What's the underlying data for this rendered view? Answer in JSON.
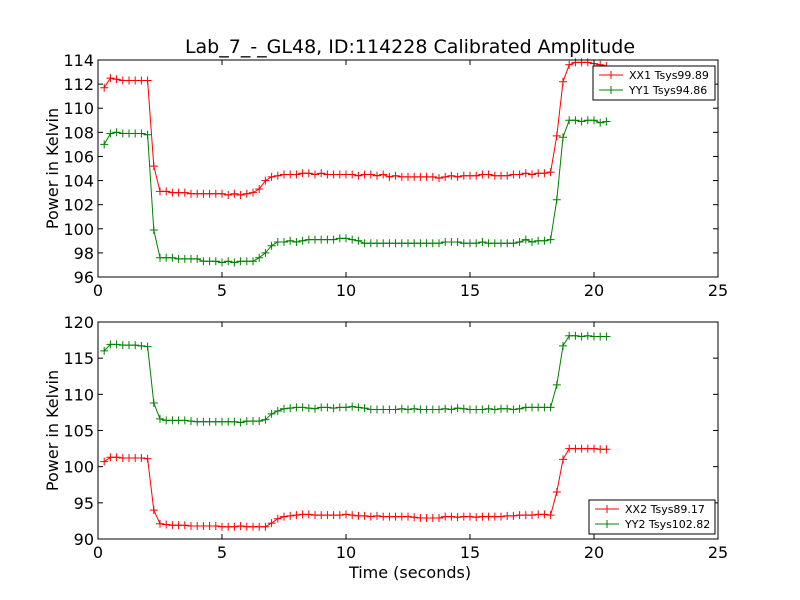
{
  "figure": {
    "title": "Lab_7_-_GL48, ID:114228 Calibrated Amplitude",
    "xlabel": "Time (seconds)"
  },
  "colors": {
    "xx": "#ff0000",
    "yy": "#008000"
  },
  "chart_data": [
    {
      "type": "line",
      "title": "Lab_7_-_GL48, ID:114228 Calibrated Amplitude",
      "xlabel": "",
      "ylabel": "Power in Kelvin",
      "xlim": [
        0,
        25
      ],
      "ylim": [
        96,
        114
      ],
      "xticks": [
        0,
        5,
        10,
        15,
        20,
        25
      ],
      "yticks": [
        96,
        98,
        100,
        102,
        104,
        106,
        108,
        110,
        112,
        114
      ],
      "grid": false,
      "legend_position": "top-right",
      "x": [
        0.25,
        0.5,
        0.75,
        1.0,
        1.25,
        1.5,
        1.75,
        2.0,
        2.25,
        2.5,
        2.75,
        3.0,
        3.25,
        3.5,
        3.75,
        4.0,
        4.25,
        4.5,
        4.75,
        5.0,
        5.25,
        5.5,
        5.75,
        6.0,
        6.25,
        6.5,
        6.75,
        7.0,
        7.25,
        7.5,
        7.75,
        8.0,
        8.25,
        8.5,
        8.75,
        9.0,
        9.25,
        9.5,
        9.75,
        10.0,
        10.25,
        10.5,
        10.75,
        11.0,
        11.25,
        11.5,
        11.75,
        12.0,
        12.25,
        12.5,
        12.75,
        13.0,
        13.25,
        13.5,
        13.75,
        14.0,
        14.25,
        14.5,
        14.75,
        15.0,
        15.25,
        15.5,
        15.75,
        16.0,
        16.25,
        16.5,
        16.75,
        17.0,
        17.25,
        17.5,
        17.75,
        18.0,
        18.25,
        18.5,
        18.75,
        19.0,
        19.25,
        19.5,
        19.75,
        20.0,
        20.25,
        20.5
      ],
      "series": [
        {
          "name": "XX1 Tsys99.89",
          "color": "#ff0000",
          "values": [
            111.7,
            112.5,
            112.4,
            112.3,
            112.3,
            112.3,
            112.3,
            112.3,
            105.2,
            103.1,
            103.1,
            103.0,
            103.0,
            103.0,
            102.9,
            102.9,
            102.9,
            102.9,
            102.9,
            102.9,
            102.8,
            102.9,
            102.8,
            102.9,
            103.0,
            103.3,
            104.0,
            104.3,
            104.4,
            104.5,
            104.5,
            104.5,
            104.6,
            104.6,
            104.5,
            104.6,
            104.5,
            104.5,
            104.5,
            104.5,
            104.5,
            104.4,
            104.5,
            104.5,
            104.4,
            104.5,
            104.3,
            104.4,
            104.3,
            104.3,
            104.3,
            104.3,
            104.3,
            104.3,
            104.2,
            104.3,
            104.4,
            104.3,
            104.4,
            104.4,
            104.4,
            104.5,
            104.5,
            104.4,
            104.4,
            104.4,
            104.5,
            104.5,
            104.6,
            104.5,
            104.6,
            104.6,
            104.7,
            107.7,
            112.2,
            113.6,
            113.8,
            113.8,
            113.8,
            113.7,
            113.6,
            113.5
          ]
        },
        {
          "name": "YY1 Tsys94.86",
          "color": "#008000",
          "values": [
            107.0,
            107.9,
            108.0,
            107.9,
            107.9,
            107.9,
            107.9,
            107.8,
            99.9,
            97.6,
            97.6,
            97.6,
            97.5,
            97.5,
            97.5,
            97.5,
            97.3,
            97.3,
            97.3,
            97.2,
            97.3,
            97.2,
            97.3,
            97.3,
            97.3,
            97.6,
            98.0,
            98.6,
            98.9,
            98.9,
            99.0,
            98.9,
            99.0,
            99.1,
            99.1,
            99.1,
            99.1,
            99.1,
            99.2,
            99.2,
            99.1,
            99.0,
            98.8,
            98.8,
            98.8,
            98.8,
            98.8,
            98.8,
            98.8,
            98.8,
            98.8,
            98.8,
            98.8,
            98.8,
            98.8,
            98.9,
            98.9,
            98.9,
            98.8,
            98.8,
            98.8,
            98.9,
            98.8,
            98.8,
            98.8,
            98.8,
            98.8,
            98.9,
            99.1,
            98.9,
            99.0,
            99.0,
            99.1,
            102.4,
            107.6,
            109.0,
            109.0,
            108.9,
            109.0,
            109.0,
            108.8,
            108.9
          ]
        }
      ]
    },
    {
      "type": "line",
      "title": "",
      "xlabel": "Time (seconds)",
      "ylabel": "Power in Kelvin",
      "xlim": [
        0,
        25
      ],
      "ylim": [
        90,
        120
      ],
      "xticks": [
        0,
        5,
        10,
        15,
        20,
        25
      ],
      "yticks": [
        90,
        95,
        100,
        105,
        110,
        115,
        120
      ],
      "grid": false,
      "legend_position": "bottom-right",
      "x": [
        0.25,
        0.5,
        0.75,
        1.0,
        1.25,
        1.5,
        1.75,
        2.0,
        2.25,
        2.5,
        2.75,
        3.0,
        3.25,
        3.5,
        3.75,
        4.0,
        4.25,
        4.5,
        4.75,
        5.0,
        5.25,
        5.5,
        5.75,
        6.0,
        6.25,
        6.5,
        6.75,
        7.0,
        7.25,
        7.5,
        7.75,
        8.0,
        8.25,
        8.5,
        8.75,
        9.0,
        9.25,
        9.5,
        9.75,
        10.0,
        10.25,
        10.5,
        10.75,
        11.0,
        11.25,
        11.5,
        11.75,
        12.0,
        12.25,
        12.5,
        12.75,
        13.0,
        13.25,
        13.5,
        13.75,
        14.0,
        14.25,
        14.5,
        14.75,
        15.0,
        15.25,
        15.5,
        15.75,
        16.0,
        16.25,
        16.5,
        16.75,
        17.0,
        17.25,
        17.5,
        17.75,
        18.0,
        18.25,
        18.5,
        18.75,
        19.0,
        19.25,
        19.5,
        19.75,
        20.0,
        20.25,
        20.5
      ],
      "series": [
        {
          "name": "XX2 Tsys89.17",
          "color": "#ff0000",
          "values": [
            100.7,
            101.3,
            101.3,
            101.2,
            101.2,
            101.2,
            101.2,
            101.1,
            94.0,
            92.1,
            92.0,
            91.9,
            91.9,
            91.9,
            91.8,
            91.8,
            91.8,
            91.8,
            91.8,
            91.7,
            91.7,
            91.7,
            91.8,
            91.7,
            91.7,
            91.7,
            91.7,
            92.2,
            92.8,
            93.1,
            93.2,
            93.3,
            93.4,
            93.4,
            93.3,
            93.3,
            93.3,
            93.3,
            93.3,
            93.4,
            93.3,
            93.2,
            93.2,
            93.1,
            93.2,
            93.1,
            93.1,
            93.1,
            93.1,
            93.1,
            93.0,
            92.9,
            92.9,
            92.9,
            92.9,
            93.1,
            93.1,
            93.0,
            93.1,
            93.1,
            93.0,
            93.1,
            93.1,
            93.1,
            93.1,
            93.2,
            93.2,
            93.3,
            93.3,
            93.3,
            93.4,
            93.4,
            93.3,
            96.5,
            101.0,
            102.5,
            102.5,
            102.5,
            102.5,
            102.5,
            102.4,
            102.4
          ]
        },
        {
          "name": "YY2 Tsys102.82",
          "color": "#008000",
          "values": [
            116.0,
            116.9,
            116.9,
            116.8,
            116.8,
            116.8,
            116.7,
            116.6,
            108.8,
            106.6,
            106.4,
            106.4,
            106.4,
            106.4,
            106.3,
            106.2,
            106.2,
            106.2,
            106.2,
            106.2,
            106.2,
            106.2,
            106.1,
            106.3,
            106.3,
            106.3,
            106.5,
            107.3,
            107.7,
            108.0,
            108.1,
            108.2,
            108.2,
            108.1,
            108.0,
            108.2,
            108.2,
            108.1,
            108.2,
            108.2,
            108.3,
            108.2,
            108.1,
            107.9,
            107.9,
            107.9,
            107.9,
            107.9,
            108.0,
            107.9,
            108.0,
            107.9,
            107.9,
            107.9,
            107.9,
            108.0,
            107.9,
            108.1,
            108.0,
            107.9,
            107.9,
            107.9,
            108.0,
            107.9,
            108.0,
            108.0,
            107.9,
            108.0,
            108.2,
            108.2,
            108.2,
            108.2,
            108.2,
            111.3,
            116.7,
            118.1,
            118.1,
            118.0,
            118.1,
            118.0,
            118.0,
            118.0
          ]
        }
      ]
    }
  ]
}
